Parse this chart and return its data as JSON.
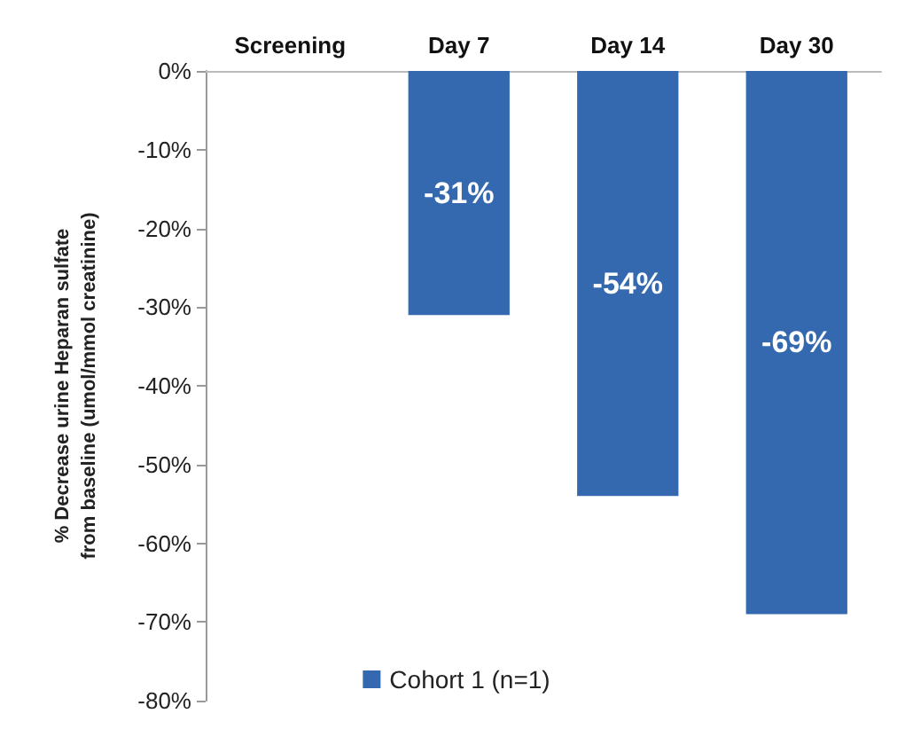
{
  "chart_data": {
    "type": "bar",
    "ylabel": "% Decrease urine Heparan sulfate\nfrom baseline (umol/mmol creatinine)",
    "categories": [
      "Screening",
      "Day 7",
      "Day 14",
      "Day 30"
    ],
    "series": [
      {
        "name": "Cohort 1 (n=1)",
        "color": "#3469b0",
        "values": [
          0,
          -31,
          -54,
          -69
        ],
        "value_labels": [
          null,
          "-31%",
          "-54%",
          "-69%"
        ]
      }
    ],
    "ylim": [
      -80,
      0
    ],
    "yticks": [
      {
        "value": 0,
        "label": "0%"
      },
      {
        "value": -10,
        "label": "-10%"
      },
      {
        "value": -20,
        "label": "-20%"
      },
      {
        "value": -30,
        "label": "-30%"
      },
      {
        "value": -40,
        "label": "-40%"
      },
      {
        "value": -50,
        "label": "-50%"
      },
      {
        "value": -60,
        "label": "-60%"
      },
      {
        "value": -70,
        "label": "-70%"
      },
      {
        "value": -80,
        "label": "-80%"
      }
    ],
    "grid": false,
    "legend": "bottom"
  }
}
